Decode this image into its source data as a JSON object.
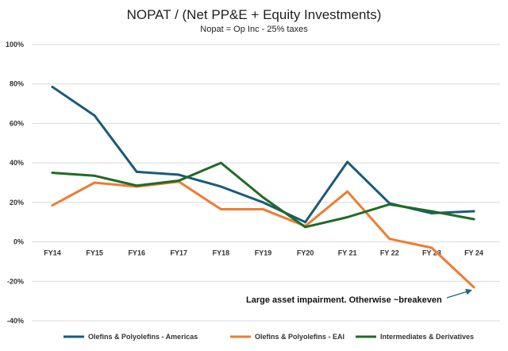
{
  "chart_data": {
    "type": "line",
    "title": "NOPAT / (Net PP&E + Equity Investments)",
    "subtitle": "Nopat = Op Inc - 25% taxes",
    "categories": [
      "FY14",
      "FY15",
      "FY16",
      "FY17",
      "FY18",
      "FY19",
      "FY20",
      "FY 21",
      "FY 22",
      "FY 23",
      "FY 24"
    ],
    "ylim": [
      -40,
      100
    ],
    "yticks": [
      -40,
      -20,
      0,
      20,
      40,
      60,
      80,
      100
    ],
    "ytick_labels": [
      "-40%",
      "-20%",
      "0%",
      "20%",
      "40%",
      "60%",
      "80%",
      "100%"
    ],
    "grid": true,
    "legend_position": "bottom",
    "series": [
      {
        "name": "Olefins & Polyolefins - Americas",
        "color": "#1a5a7a",
        "values": [
          78.5,
          64,
          35.5,
          34,
          28,
          20,
          10,
          40.5,
          19.5,
          14.5,
          15.5
        ]
      },
      {
        "name": "Olefins & Polyolefins - EAI",
        "color": "#ed7d31",
        "values": [
          18.5,
          30,
          28,
          30.5,
          16.5,
          16.5,
          8,
          25.5,
          1.5,
          -3,
          -23
        ]
      },
      {
        "name": "Intermediates & Derivatives",
        "color": "#1e6b24",
        "values": [
          35,
          33.5,
          28.5,
          31,
          40,
          22.5,
          7.5,
          12.5,
          19,
          15.5,
          11.5
        ]
      }
    ],
    "annotation": {
      "text": "Large asset impairment. Otherwise ~breakeven",
      "target_category": "FY 24",
      "target_series": "Olefins & Polyolefins - EAI"
    }
  }
}
